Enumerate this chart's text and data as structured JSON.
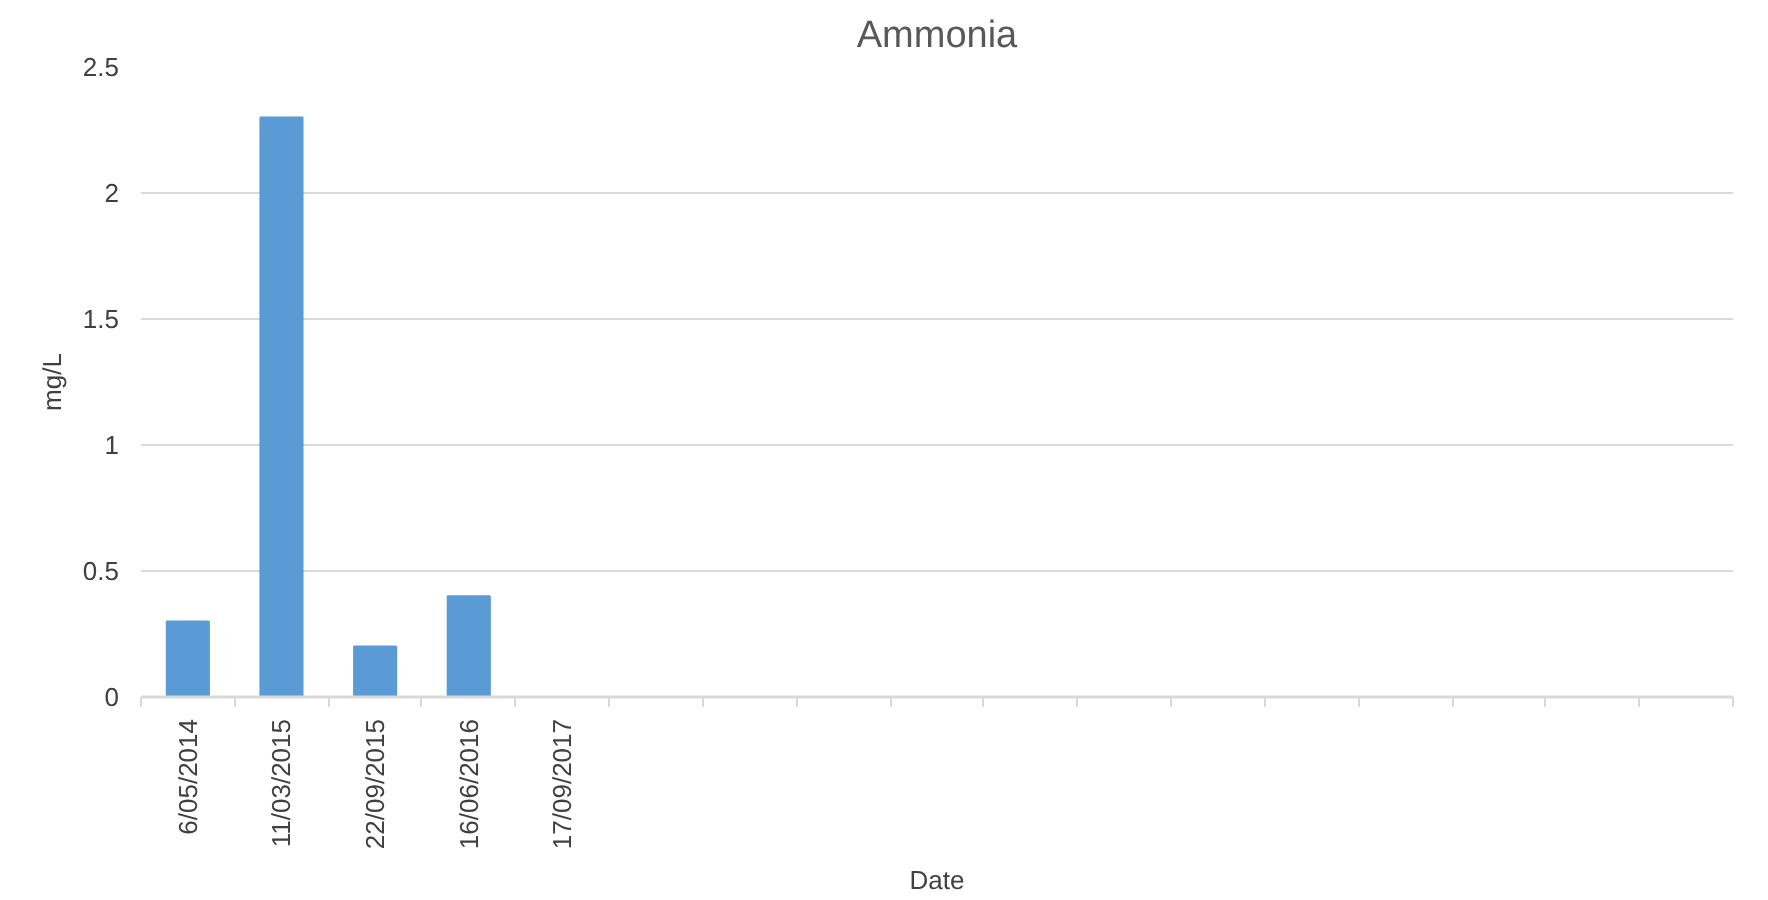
{
  "chart_data": {
    "type": "bar",
    "title": "Ammonia",
    "xlabel": "Date",
    "ylabel": "mg/L",
    "categories": [
      "6/05/2014",
      "11/03/2015",
      "22/09/2015",
      "16/06/2016",
      "17/09/2017",
      null,
      null,
      null,
      null,
      null,
      null,
      null,
      null,
      null,
      null,
      null,
      null
    ],
    "values": [
      0.3,
      2.3,
      0.2,
      0.4,
      null,
      null,
      null,
      null,
      null,
      null,
      null,
      null,
      null,
      null,
      null,
      null,
      null
    ],
    "color": "#5b9bd5",
    "ylim": [
      0,
      2.5
    ],
    "yticks": [
      0,
      0.5,
      1,
      1.5,
      2,
      2.5
    ],
    "grid": "y"
  }
}
